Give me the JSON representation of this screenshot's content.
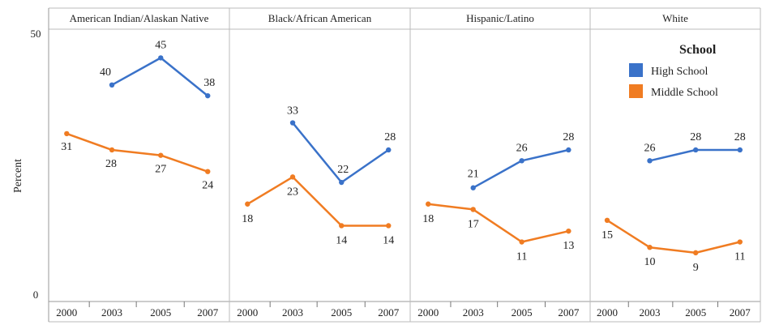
{
  "chart_data": {
    "type": "line",
    "ylabel": "Percent",
    "ylim": [
      0,
      50
    ],
    "y_ticks": [
      "0",
      "50"
    ],
    "categories": [
      "2000",
      "2003",
      "2005",
      "2007"
    ],
    "legend": {
      "title": "School",
      "placement": "top-right"
    },
    "colors": {
      "High School": "#3a72c9",
      "Middle School": "#f07c22"
    },
    "panels": [
      {
        "title": "American Indian/Alaskan Native",
        "series": [
          {
            "name": "High School",
            "values": [
              null,
              40,
              45,
              38
            ],
            "labels": [
              "",
              "40",
              "45",
              "38"
            ]
          },
          {
            "name": "Middle School",
            "values": [
              31,
              28,
              27,
              24
            ],
            "labels": [
              "31",
              "28",
              "27",
              "24"
            ]
          }
        ]
      },
      {
        "title": "Black/African American",
        "series": [
          {
            "name": "High School",
            "values": [
              null,
              33,
              22,
              28
            ],
            "labels": [
              "",
              "33",
              "22",
              "28"
            ]
          },
          {
            "name": "Middle School",
            "values": [
              18,
              23,
              14,
              14
            ],
            "labels": [
              "18",
              "23",
              "14",
              "14"
            ]
          }
        ]
      },
      {
        "title": "Hispanic/Latino",
        "series": [
          {
            "name": "High School",
            "values": [
              null,
              21,
              26,
              28
            ],
            "labels": [
              "",
              "21",
              "26",
              "28"
            ]
          },
          {
            "name": "Middle School",
            "values": [
              18,
              17,
              11,
              13
            ],
            "labels": [
              "18",
              "17",
              "11",
              "13"
            ]
          }
        ]
      },
      {
        "title": "White",
        "series": [
          {
            "name": "High School",
            "values": [
              null,
              26,
              28,
              28
            ],
            "labels": [
              "",
              "26",
              "28",
              "28"
            ]
          },
          {
            "name": "Middle School",
            "values": [
              15,
              10,
              9,
              11
            ],
            "labels": [
              "15",
              "10",
              "9",
              "11"
            ]
          }
        ]
      }
    ]
  }
}
